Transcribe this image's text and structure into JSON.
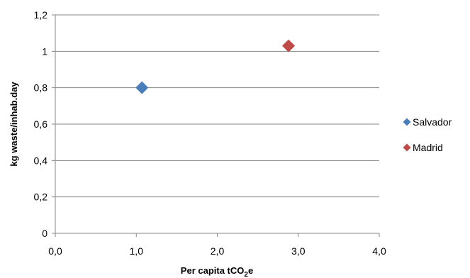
{
  "chart_data": {
    "type": "scatter",
    "title": "",
    "xlabel_main": "Per capita tCO",
    "xlabel_sub": "2",
    "xlabel_tail": "e",
    "ylabel": "kg waste/inhab.day",
    "xlim": [
      0,
      4
    ],
    "ylim": [
      0,
      1.2
    ],
    "x_ticks": [
      "0,0",
      "1,0",
      "2,0",
      "3,0",
      "4,0"
    ],
    "y_ticks": [
      "0",
      "0,2",
      "0,4",
      "0,6",
      "0,8",
      "1",
      "1,2"
    ],
    "grid": "horizontal",
    "legend_position": "right",
    "series": [
      {
        "name": "Salvador",
        "color": "#4a7ebb",
        "points": [
          {
            "x": 1.07,
            "y": 0.8
          }
        ]
      },
      {
        "name": "Madrid",
        "color": "#be4b48",
        "points": [
          {
            "x": 2.88,
            "y": 1.03
          }
        ]
      }
    ]
  }
}
